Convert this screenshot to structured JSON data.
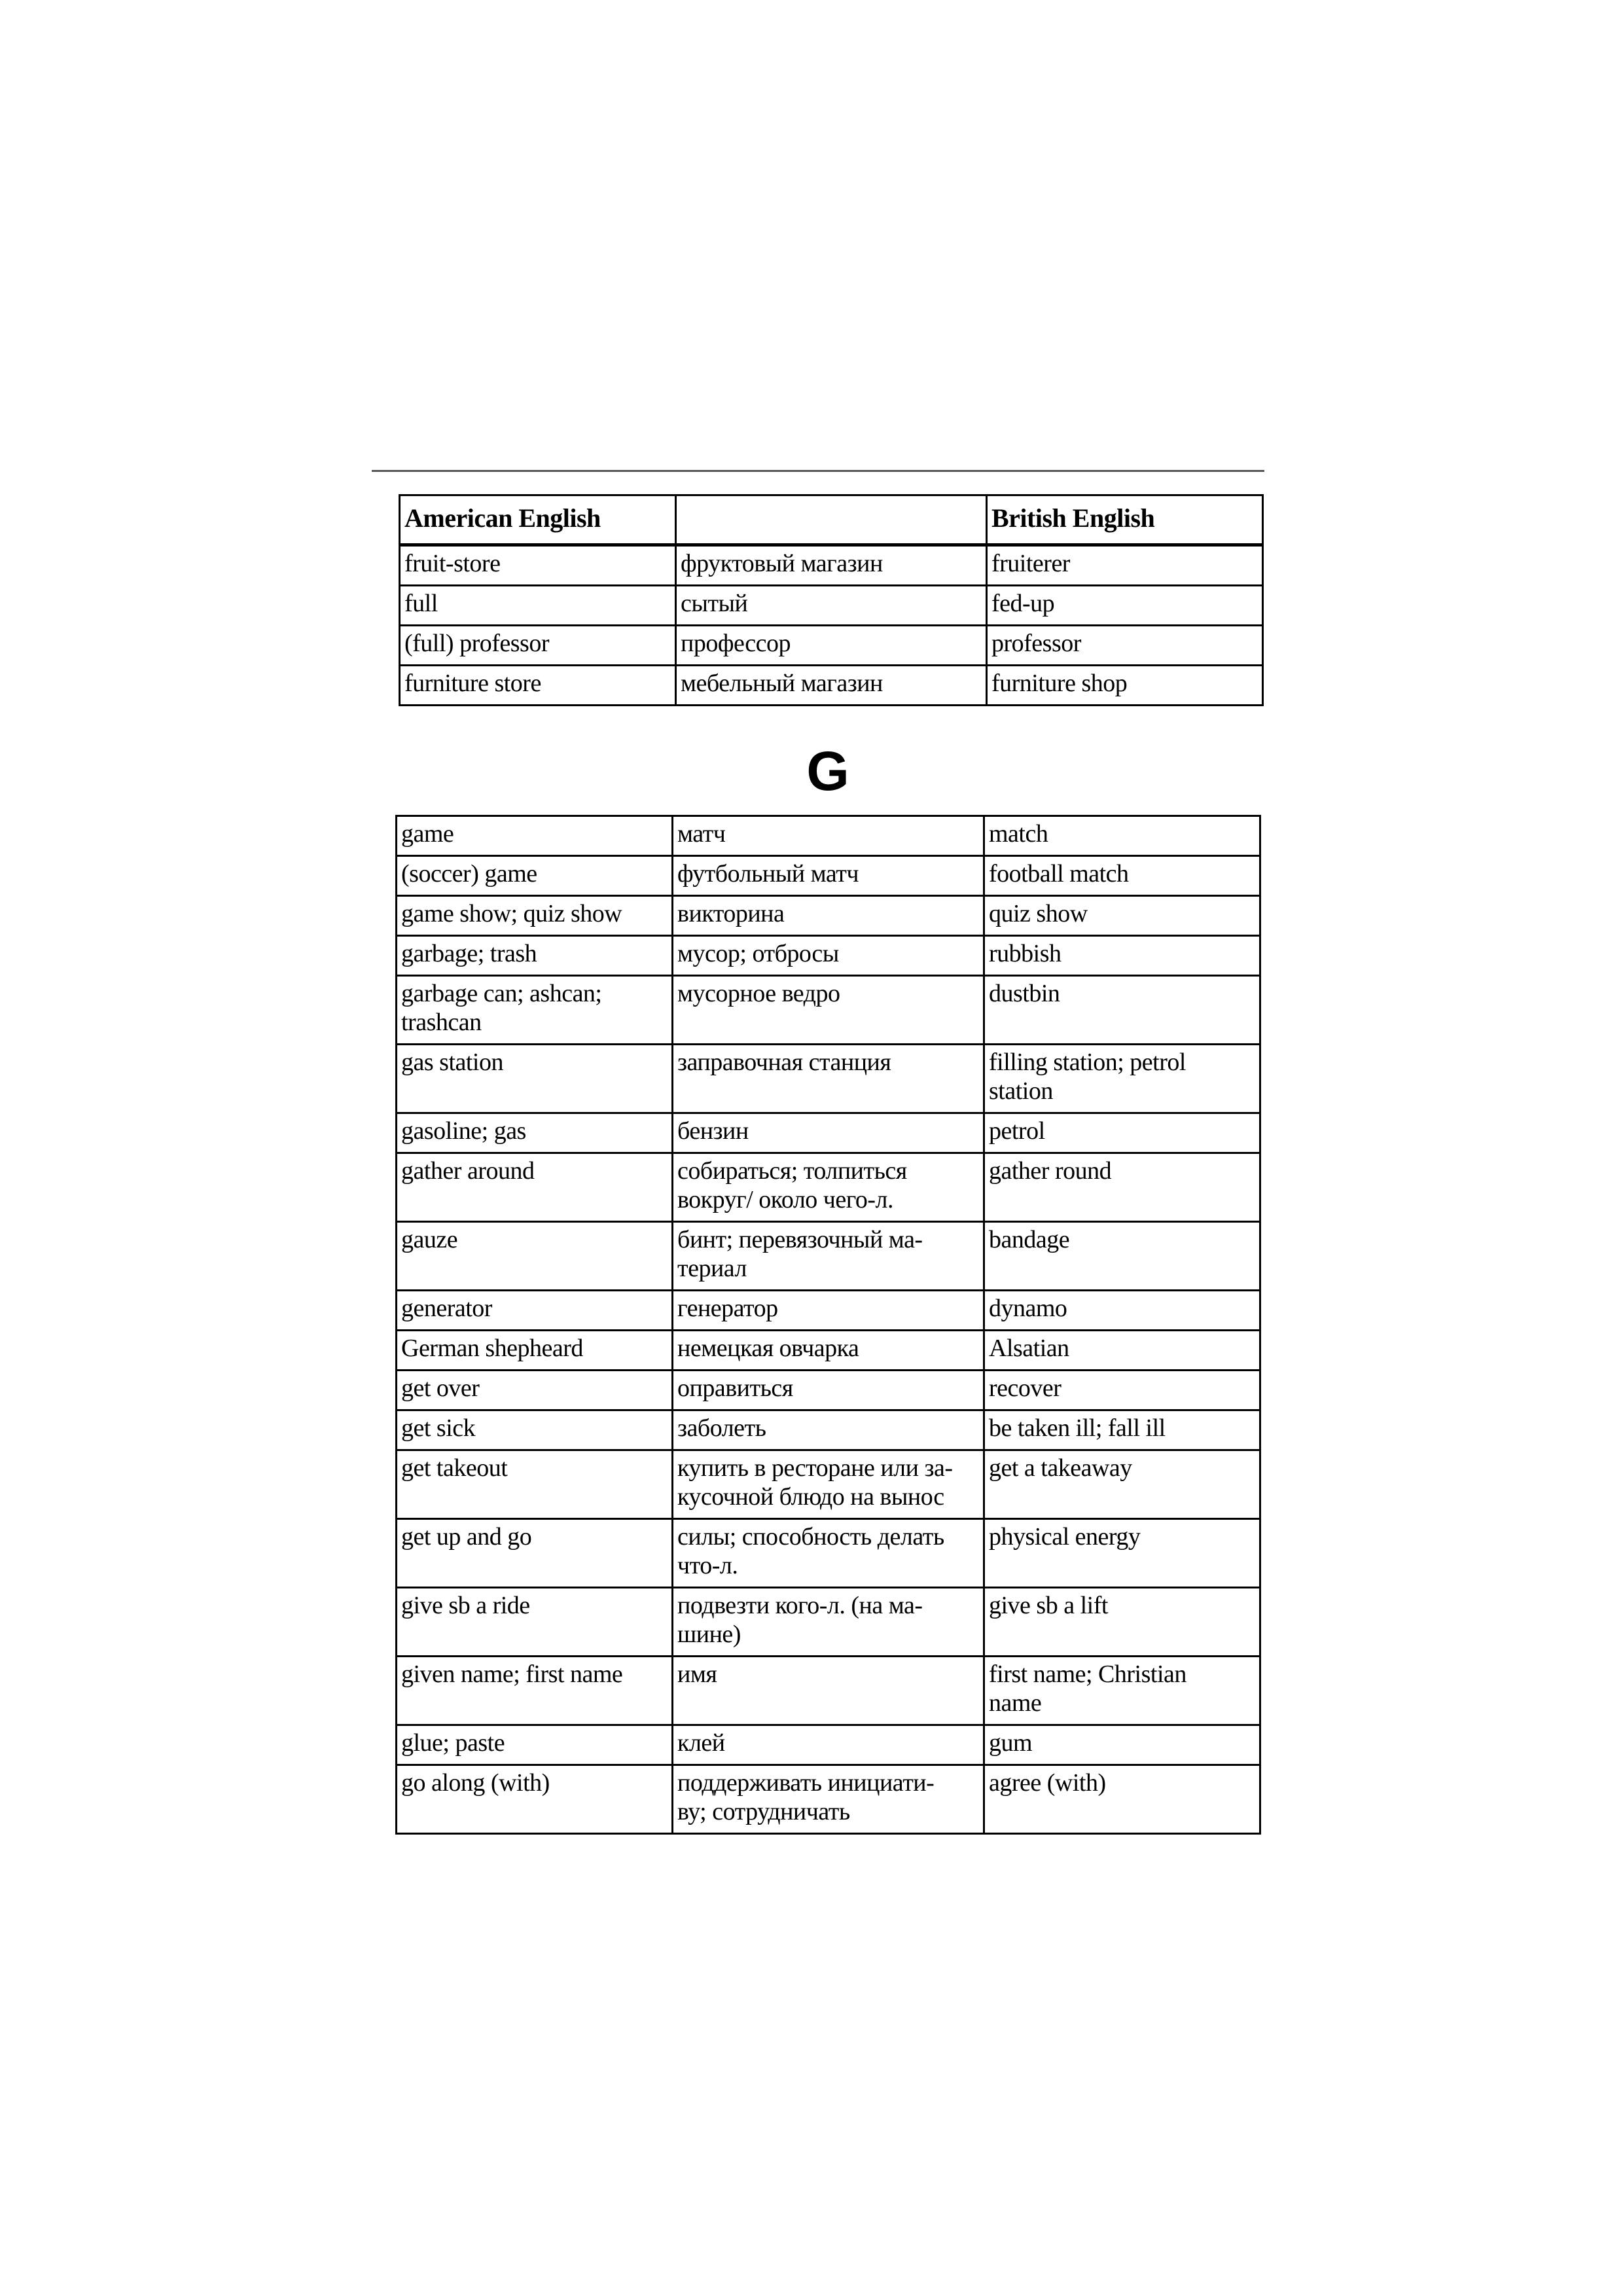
{
  "top_table": {
    "headers": [
      "American English",
      "",
      "British  English"
    ],
    "rows": [
      [
        "fruit-store",
        "фруктовый магазин",
        "fruiterer"
      ],
      [
        "full",
        "сытый",
        "fed-up"
      ],
      [
        "(full) professor",
        "профессор",
        "professor"
      ],
      [
        "furniture store",
        "мебельный магазин",
        "furniture shop"
      ]
    ]
  },
  "section_letter": "G",
  "g_table": {
    "rows": [
      [
        "game",
        "матч",
        "match"
      ],
      [
        "(soccer) game",
        "футбольный матч",
        "football match"
      ],
      [
        "game show; quiz show",
        "викторина",
        "quiz show"
      ],
      [
        "garbage; trash",
        "мусор; отбросы",
        "rubbish"
      ],
      [
        "garbage can; ashcan;\ntrashcan",
        "мусорное ведро",
        "dustbin"
      ],
      [
        "gas station",
        "заправочная станция",
        "filling station; petrol\nstation"
      ],
      [
        "gasoline; gas",
        "бензин",
        "petrol"
      ],
      [
        "gather around",
        "собираться; толпиться\nвокруг/ около чего-л.",
        "gather round"
      ],
      [
        "gauze",
        "бинт; перевязочный ма-\nтериал",
        "bandage"
      ],
      [
        "generator",
        "генератор",
        "dynamo"
      ],
      [
        "German shepheard",
        "немецкая овчарка",
        "Alsatian"
      ],
      [
        "get over",
        "оправиться",
        "recover"
      ],
      [
        "get sick",
        "заболеть",
        "be taken ill; fall ill"
      ],
      [
        "get takeout",
        "купить в ресторане или за-\nкусочной блюдо на вынос",
        "get a takeaway"
      ],
      [
        "get up and go",
        "силы; способность делать\nчто-л.",
        "physical energy"
      ],
      [
        "give sb a ride",
        "подвезти кого-л. (на ма-\nшине)",
        "give sb a lift"
      ],
      [
        "given name; first name",
        "имя",
        "first name; Christian\nname"
      ],
      [
        "glue; paste",
        "клей",
        "gum"
      ],
      [
        "go along (with)",
        "поддерживать инициати-\nву; сотрудничать",
        "agree (with)"
      ]
    ]
  }
}
